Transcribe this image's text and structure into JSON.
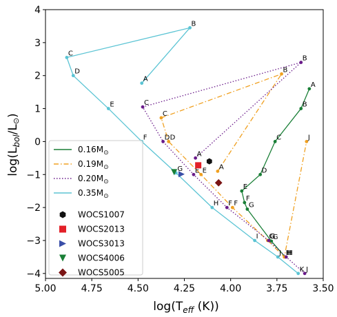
{
  "chart_data": {
    "type": "line",
    "xlabel_parts": [
      "log(T",
      "eff",
      " (K))"
    ],
    "ylabel_parts": [
      "log(L",
      "bol",
      "/L",
      "⊙",
      ")"
    ],
    "xlim": [
      5.0,
      3.5
    ],
    "ylim": [
      -4.15,
      4.0
    ],
    "xticks": [
      5.0,
      4.75,
      4.5,
      4.25,
      4.0,
      3.75,
      3.5
    ],
    "xtick_labels": [
      "5.00",
      "4.75",
      "4.50",
      "4.25",
      "4.00",
      "3.75",
      "3.50"
    ],
    "yticks": [
      4,
      3,
      2,
      1,
      0,
      -1,
      -2,
      -3,
      -4
    ],
    "ytick_labels": [
      "4",
      "3",
      "2",
      "1",
      "0",
      "−1",
      "−2",
      "−3",
      "−4"
    ],
    "grid": false,
    "legend_position": "lower-left",
    "series": [
      {
        "name": "0.16M⊙",
        "name_parts": [
          "0.16M",
          "⊙"
        ],
        "color": "#1a7f37",
        "linestyle": "solid",
        "points": [
          {
            "label": "A",
            "x": 3.575,
            "y": 1.6
          },
          {
            "label": "B",
            "x": 3.62,
            "y": 1.0
          },
          {
            "label": "C",
            "x": 3.76,
            "y": 0.0
          },
          {
            "label": "D",
            "x": 3.84,
            "y": -1.0
          },
          {
            "label": "E",
            "x": 3.94,
            "y": -1.5
          },
          {
            "label": "F",
            "x": 3.925,
            "y": -1.85
          },
          {
            "label": "G",
            "x": 3.91,
            "y": -2.05
          },
          {
            "label": "G",
            "x": 3.78,
            "y": -3.02
          },
          {
            "label": "H",
            "x": 3.705,
            "y": -3.5
          }
        ]
      },
      {
        "name": "0.19M⊙",
        "name_parts": [
          "0.19M",
          "⊙"
        ],
        "color": "#f0a020",
        "linestyle": "dashdot",
        "points": [
          {
            "label": "A",
            "x": 4.07,
            "y": -0.9
          },
          {
            "label": "B",
            "x": 3.725,
            "y": 2.05
          },
          {
            "label": "C",
            "x": 4.375,
            "y": 0.72
          },
          {
            "label": "D",
            "x": 4.335,
            "y": 0.0
          },
          {
            "label": "E",
            "x": 4.16,
            "y": -1.0
          },
          {
            "label": "F",
            "x": 3.99,
            "y": -2.0
          },
          {
            "label": "G",
            "x": 3.8,
            "y": -3.0
          },
          {
            "label": "H",
            "x": 3.71,
            "y": -3.5
          },
          {
            "label": "J",
            "x": 3.59,
            "y": 0.0
          }
        ]
      },
      {
        "name": "0.20M⊙",
        "name_parts": [
          "0.20M",
          "⊙"
        ],
        "color": "#6a1b8a",
        "linestyle": "dotted",
        "points": [
          {
            "label": "A",
            "x": 4.19,
            "y": -0.5
          },
          {
            "label": "B",
            "x": 3.62,
            "y": 2.4
          },
          {
            "label": "C",
            "x": 4.475,
            "y": 1.05
          },
          {
            "label": "D",
            "x": 4.365,
            "y": 0.0
          },
          {
            "label": "E",
            "x": 4.2,
            "y": -1.0
          },
          {
            "label": "F",
            "x": 4.02,
            "y": -2.0
          },
          {
            "label": "G",
            "x": 3.795,
            "y": -3.0
          },
          {
            "label": "H",
            "x": 3.7,
            "y": -3.5
          },
          {
            "label": "J",
            "x": 3.6,
            "y": -4.0
          }
        ]
      },
      {
        "name": "0.35M⊙",
        "name_parts": [
          "0.35M",
          "⊙"
        ],
        "color": "#5bc4d4",
        "linestyle": "solid",
        "points": [
          {
            "label": "A",
            "x": 4.48,
            "y": 1.77
          },
          {
            "label": "B",
            "x": 4.22,
            "y": 3.45
          },
          {
            "label": "C",
            "x": 4.885,
            "y": 2.55
          },
          {
            "label": "D",
            "x": 4.85,
            "y": 2.0
          },
          {
            "label": "E",
            "x": 4.66,
            "y": 1.0
          },
          {
            "label": "F",
            "x": 4.48,
            "y": 0.0
          },
          {
            "label": "G",
            "x": 4.295,
            "y": -0.95
          },
          {
            "label": "H",
            "x": 4.1,
            "y": -2.0
          },
          {
            "label": "I",
            "x": 3.87,
            "y": -3.0
          },
          {
            "label": "J",
            "x": 3.745,
            "y": -3.5
          },
          {
            "label": "K",
            "x": 3.635,
            "y": -4.0
          }
        ]
      }
    ],
    "objects": [
      {
        "name": "WOCS1007",
        "x": 4.115,
        "y": -0.6,
        "marker": "hexagon",
        "color": "#111111"
      },
      {
        "name": "WOCS2013",
        "x": 4.175,
        "y": -0.72,
        "marker": "square",
        "color": "#e32028"
      },
      {
        "name": "WOCS3013",
        "x": 4.265,
        "y": -0.99,
        "marker": "triangle-right",
        "color": "#3a4fa8"
      },
      {
        "name": "WOCS4006",
        "x": 4.305,
        "y": -0.93,
        "marker": "triangle-down",
        "color": "#1a7f37"
      },
      {
        "name": "WOCS5005",
        "x": 4.065,
        "y": -1.25,
        "marker": "diamond",
        "color": "#7a1414"
      }
    ]
  }
}
